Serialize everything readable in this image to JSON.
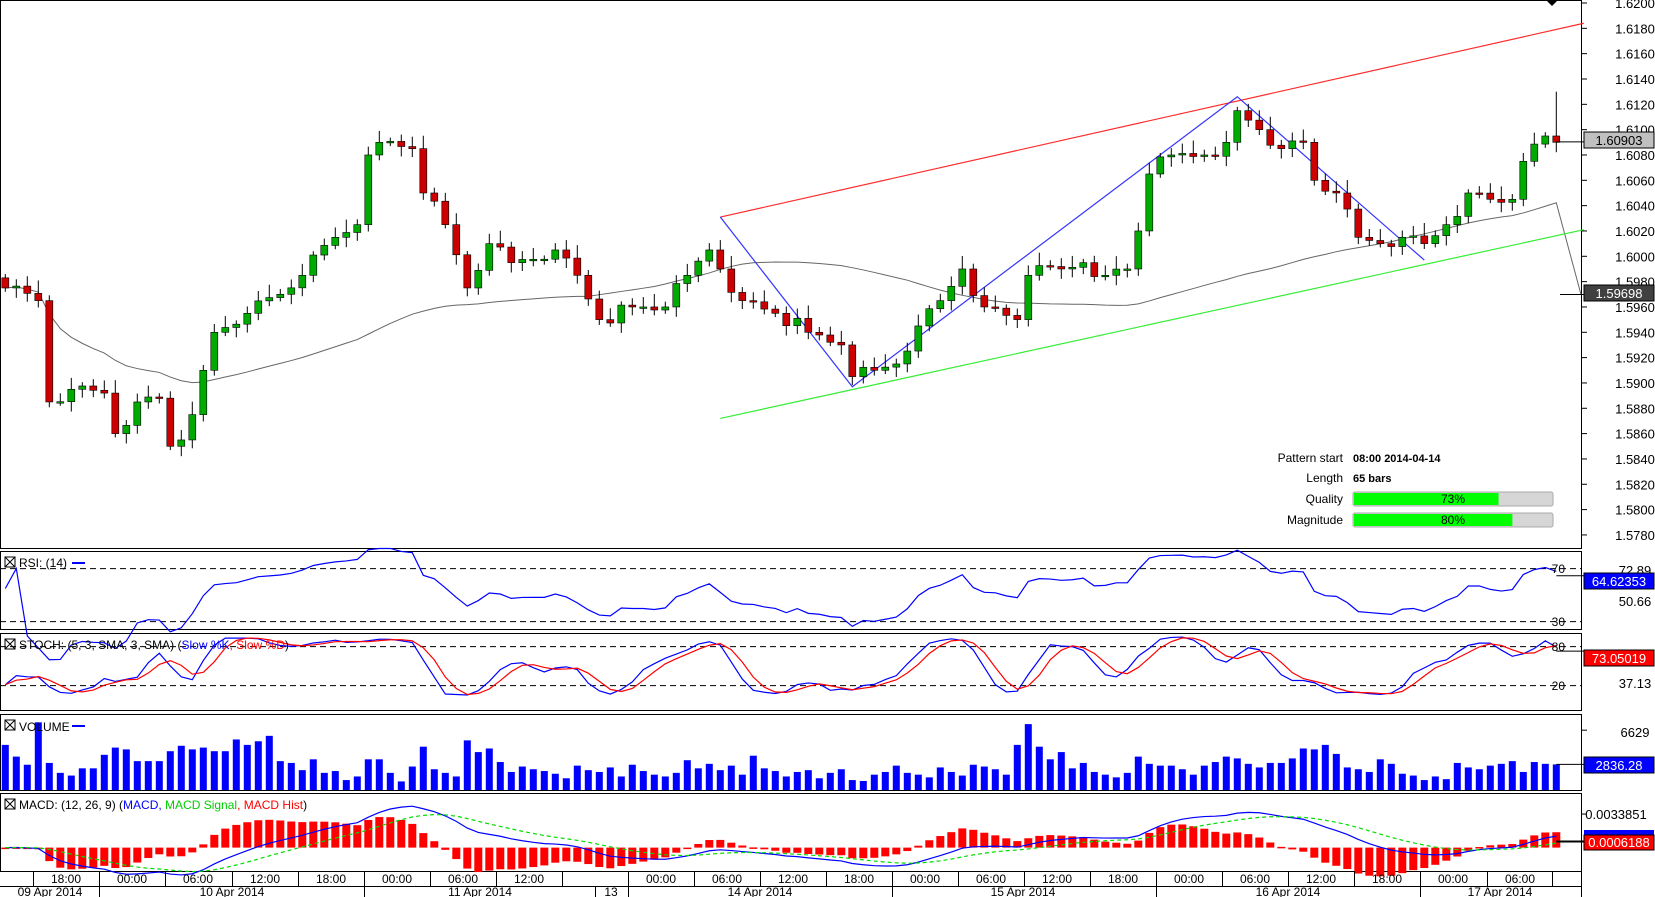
{
  "chart_data": {
    "type": "candlestick",
    "instrument_last_price": "1.60903",
    "sma_last": "1.59698",
    "price_axis": {
      "ylim": [
        1.577,
        1.6202
      ],
      "ticks": [
        "1.6200",
        "1.6180",
        "1.6160",
        "1.6140",
        "1.6120",
        "1.6100",
        "1.6080",
        "1.6060",
        "1.6040",
        "1.6020",
        "1.6000",
        "1.5980",
        "1.5960",
        "1.5940",
        "1.5920",
        "1.5900",
        "1.5880",
        "1.5860",
        "1.5840",
        "1.5820",
        "1.5800",
        "1.5780"
      ]
    },
    "close_keypoints": [
      [
        0,
        1.5975
      ],
      [
        3,
        1.5965
      ],
      [
        4,
        1.5885
      ],
      [
        6,
        1.5895
      ],
      [
        9,
        1.5892
      ],
      [
        10,
        1.586
      ],
      [
        12,
        1.5885
      ],
      [
        14,
        1.5888
      ],
      [
        15,
        1.585
      ],
      [
        16,
        1.5855
      ],
      [
        17,
        1.5875
      ],
      [
        18,
        1.591
      ],
      [
        19,
        1.594
      ],
      [
        22,
        1.5955
      ],
      [
        25,
        1.597
      ],
      [
        27,
        1.5985
      ],
      [
        30,
        1.6015
      ],
      [
        32,
        1.6025
      ],
      [
        33,
        1.608
      ],
      [
        34,
        1.609
      ],
      [
        37,
        1.6085
      ],
      [
        38,
        1.605
      ],
      [
        40,
        1.6025
      ],
      [
        42,
        1.5975
      ],
      [
        44,
        1.601
      ],
      [
        46,
        1.5995
      ],
      [
        50,
        1.6005
      ],
      [
        52,
        1.5985
      ],
      [
        54,
        1.595
      ],
      [
        57,
        1.596
      ],
      [
        60,
        1.596
      ],
      [
        62,
        1.5985
      ],
      [
        64,
        1.6005
      ],
      [
        65,
        1.599
      ],
      [
        67,
        1.5965
      ],
      [
        70,
        1.5955
      ],
      [
        73,
        1.594
      ],
      [
        76,
        1.593
      ],
      [
        77,
        1.5905
      ],
      [
        79,
        1.591
      ],
      [
        81,
        1.5915
      ],
      [
        83,
        1.5945
      ],
      [
        85,
        1.5965
      ],
      [
        87,
        1.599
      ],
      [
        89,
        1.596
      ],
      [
        92,
        1.595
      ],
      [
        93,
        1.5985
      ],
      [
        96,
        1.599
      ],
      [
        98,
        1.5995
      ],
      [
        100,
        1.5985
      ],
      [
        102,
        1.599
      ],
      [
        103,
        1.602
      ],
      [
        104,
        1.6065
      ],
      [
        106,
        1.608
      ],
      [
        109,
        1.608
      ],
      [
        111,
        1.609
      ],
      [
        112,
        1.6115
      ],
      [
        114,
        1.61
      ],
      [
        116,
        1.6085
      ],
      [
        118,
        1.609
      ],
      [
        119,
        1.606
      ],
      [
        121,
        1.605
      ],
      [
        123,
        1.6015
      ],
      [
        125,
        1.601
      ],
      [
        127,
        1.6015
      ],
      [
        129,
        1.601
      ],
      [
        131,
        1.6025
      ],
      [
        133,
        1.605
      ],
      [
        135,
        1.6045
      ],
      [
        137,
        1.6045
      ],
      [
        138,
        1.6075
      ],
      [
        140,
        1.6095
      ],
      [
        141,
        1.609
      ]
    ],
    "bar_count": 142,
    "pattern": {
      "resistance": [
        [
          65,
          1.6031
        ],
        [
          143.5,
          1.6184
        ]
      ],
      "support": [
        [
          65,
          1.5872
        ],
        [
          143.5,
          1.6021
        ]
      ],
      "zigzag": [
        [
          65,
          1.6031
        ],
        [
          77,
          1.5897
        ],
        [
          112,
          1.6126
        ],
        [
          129,
          1.5997
        ]
      ]
    },
    "volume": [
      5000,
      3700,
      2800,
      7500,
      3000,
      1900,
      1600,
      2400,
      2400,
      3900,
      4700,
      4500,
      3200,
      3200,
      3200,
      4300,
      4900,
      4500,
      4700,
      4300,
      4300,
      5600,
      5000,
      5400,
      6000,
      3200,
      3000,
      2200,
      3400,
      1900,
      2100,
      1100,
      1500,
      3400,
      3400,
      1900,
      950,
      2600,
      4800,
      2300,
      1900,
      1500,
      5500,
      4200,
      4600,
      3100,
      2000,
      2600,
      2300,
      2100,
      1800,
      1300,
      2700,
      2200,
      2000,
      2500,
      1500,
      2800,
      2100,
      1700,
      1500,
      1900,
      3300,
      2400,
      2900,
      2200,
      2700,
      1700,
      3800,
      2400,
      2100,
      1500,
      2000,
      2200,
      1300,
      1900,
      2300,
      1100,
      1000,
      1700,
      2000,
      2700,
      1900,
      1700,
      1400,
      2500,
      2000,
      1600,
      2800,
      2600,
      2300,
      1700,
      5000,
      7300,
      4800,
      3400,
      4200,
      2400,
      3000,
      2000,
      1700,
      1400,
      1900,
      3700,
      2900,
      2700,
      2700,
      2300,
      1700,
      2700,
      3100,
      3700,
      3500,
      2900,
      2500,
      3000,
      3000,
      3500,
      4600,
      4500,
      5000,
      4000,
      2500,
      2300,
      2000,
      3400,
      2900,
      1800,
      1600,
      1100,
      1500,
      1200,
      3000,
      2500,
      2300,
      2700,
      2900,
      3200,
      2000,
      3100,
      2900,
      2836
    ],
    "info_box": {
      "pattern_start_label": "Pattern start",
      "pattern_start_value": "08:00 2014-04-14",
      "length_label": "Length",
      "length_value": "65 bars",
      "quality_label": "Quality",
      "quality_value": "73%",
      "quality_pct": 73,
      "magnitude_label": "Magnitude",
      "magnitude_value": "80%",
      "magnitude_pct": 80
    },
    "rsi": {
      "title": "RSI: (14)",
      "ylim": [
        23.7,
        82.5
      ],
      "level_high": "70",
      "level_low": "30",
      "axis_labels": [
        "72.89",
        "50.66"
      ],
      "last": "64.62353"
    },
    "stoch": {
      "title": "STOCH: (5, 3, SMA, 3, SMA) (",
      "k_label": "Slow %K",
      "sep": ", ",
      "d_label": "Slow %D",
      "close": ")",
      "ylim": [
        -19,
        99.5
      ],
      "level_high": "80",
      "level_low": "20",
      "axis_labels": [
        "37.13"
      ],
      "last": "73.05019"
    },
    "volume_panel": {
      "title": "VOLUME",
      "axis_labels": [
        "6629"
      ],
      "axis_values": [
        6629
      ],
      "ymax": 8200,
      "last": "2836.28"
    },
    "macd": {
      "title": "MACD: (12, 26, 9) (",
      "macd_label": "MACD",
      "sep1": ", ",
      "signal_label": "MACD Signal",
      "sep2": ", ",
      "hist_label": "MACD Hist",
      "close": ")",
      "axis_labels": [
        "0.0033851"
      ],
      "last": "0.0006188"
    },
    "time_axis": {
      "hours": [
        "18:00",
        "00:00",
        "06:00",
        "12:00",
        "18:00",
        "00:00",
        "06:00",
        "12:00",
        "",
        "00:00",
        "06:00",
        "12:00",
        "18:00",
        "00:00",
        "06:00",
        "12:00",
        "18:00",
        "00:00",
        "06:00",
        "12:00",
        "18:00",
        "00:00",
        "06:00",
        ""
      ],
      "dates": [
        "09 Apr 2014",
        "10 Apr 2014",
        "11 Apr 2014",
        "13",
        "14 Apr 2014",
        "15 Apr 2014",
        "16 Apr 2014",
        "17 Apr 2014"
      ]
    },
    "colors": {
      "bull": "#00aa00",
      "bear": "#cc0000",
      "resistance": "#ff2a2a",
      "support": "#33ee33",
      "zigzag": "#3333ff",
      "sma": "#666666",
      "indicator_blue": "#0000ff",
      "indicator_red": "#ff0000",
      "signal_green": "#00dd00",
      "quality_fill": "#00ff00"
    }
  }
}
